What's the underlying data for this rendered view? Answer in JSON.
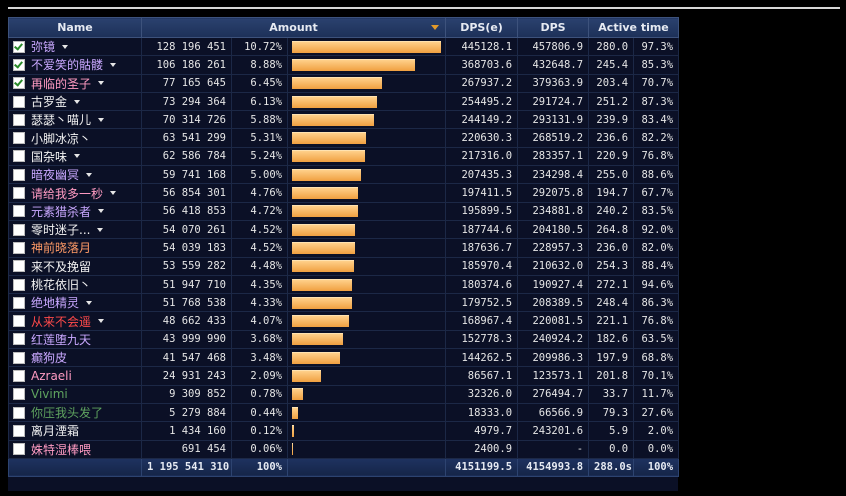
{
  "columns": {
    "name": "Name",
    "amount": "Amount",
    "dps_e": "DPS(e)",
    "dps": "DPS",
    "active": "Active time"
  },
  "rows": [
    {
      "checked": true,
      "name": "弥镜",
      "color": "#c9a8ff",
      "dropdown": true,
      "amount": "128 196 451",
      "pct": "10.72%",
      "frac": 1.0,
      "dpse": "445128.1",
      "dps": "457806.9",
      "time": "280.0",
      "tpct": "97.3%"
    },
    {
      "checked": true,
      "name": "不爱笑的骷髅",
      "color": "#c9a8ff",
      "dropdown": true,
      "amount": "106 186 261",
      "pct": "8.88%",
      "frac": 0.828,
      "dpse": "368703.6",
      "dps": "432648.7",
      "time": "245.4",
      "tpct": "85.3%"
    },
    {
      "checked": true,
      "name": "再临的圣子",
      "color": "#ff9bc2",
      "dropdown": true,
      "amount": "77 165 645",
      "pct": "6.45%",
      "frac": 0.602,
      "dpse": "267937.2",
      "dps": "379363.9",
      "time": "203.4",
      "tpct": "70.7%"
    },
    {
      "checked": false,
      "name": "古罗金",
      "color": "#f2f2f2",
      "dropdown": true,
      "amount": "73 294 364",
      "pct": "6.13%",
      "frac": 0.572,
      "dpse": "254495.2",
      "dps": "291724.7",
      "time": "251.2",
      "tpct": "87.3%"
    },
    {
      "checked": false,
      "name": "瑟瑟丶喵儿",
      "color": "#f2f2f2",
      "dropdown": true,
      "amount": "70 314 726",
      "pct": "5.88%",
      "frac": 0.548,
      "dpse": "244149.2",
      "dps": "293131.9",
      "time": "239.9",
      "tpct": "83.4%"
    },
    {
      "checked": false,
      "name": "小脚冰凉丶",
      "color": "#f2f2f2",
      "dropdown": false,
      "amount": "63 541 299",
      "pct": "5.31%",
      "frac": 0.496,
      "dpse": "220630.3",
      "dps": "268519.2",
      "time": "236.6",
      "tpct": "82.2%"
    },
    {
      "checked": false,
      "name": "国杂味",
      "color": "#f2f2f2",
      "dropdown": true,
      "amount": "62 586 784",
      "pct": "5.24%",
      "frac": 0.488,
      "dpse": "217316.0",
      "dps": "283357.1",
      "time": "220.9",
      "tpct": "76.8%"
    },
    {
      "checked": false,
      "name": "暗夜幽冥",
      "color": "#c9a8ff",
      "dropdown": true,
      "amount": "59 741 168",
      "pct": "5.00%",
      "frac": 0.466,
      "dpse": "207435.3",
      "dps": "234298.4",
      "time": "255.0",
      "tpct": "88.6%"
    },
    {
      "checked": false,
      "name": "请给我多一秒",
      "color": "#ff9bc2",
      "dropdown": true,
      "amount": "56 854 301",
      "pct": "4.76%",
      "frac": 0.443,
      "dpse": "197411.5",
      "dps": "292075.8",
      "time": "194.7",
      "tpct": "67.7%"
    },
    {
      "checked": false,
      "name": "元素猎杀者",
      "color": "#c9a8ff",
      "dropdown": true,
      "amount": "56 418 853",
      "pct": "4.72%",
      "frac": 0.44,
      "dpse": "195899.5",
      "dps": "234881.8",
      "time": "240.2",
      "tpct": "83.5%"
    },
    {
      "checked": false,
      "name": "零时迷子...",
      "color": "#f2f2f2",
      "dropdown": true,
      "amount": "54 070 261",
      "pct": "4.52%",
      "frac": 0.422,
      "dpse": "187744.6",
      "dps": "204180.5",
      "time": "264.8",
      "tpct": "92.0%"
    },
    {
      "checked": false,
      "name": "神前晓落月",
      "color": "#ff9a66",
      "dropdown": false,
      "amount": "54 039 183",
      "pct": "4.52%",
      "frac": 0.421,
      "dpse": "187636.7",
      "dps": "228957.3",
      "time": "236.0",
      "tpct": "82.0%"
    },
    {
      "checked": false,
      "name": "来不及挽留",
      "color": "#f2f2f2",
      "dropdown": false,
      "amount": "53 559 282",
      "pct": "4.48%",
      "frac": 0.418,
      "dpse": "185970.4",
      "dps": "210632.0",
      "time": "254.3",
      "tpct": "88.4%"
    },
    {
      "checked": false,
      "name": "桃花依旧丶",
      "color": "#f2f2f2",
      "dropdown": false,
      "amount": "51 947 710",
      "pct": "4.35%",
      "frac": 0.405,
      "dpse": "180374.6",
      "dps": "190927.4",
      "time": "272.1",
      "tpct": "94.6%"
    },
    {
      "checked": false,
      "name": "绝地精灵",
      "color": "#c9a8ff",
      "dropdown": true,
      "amount": "51 768 538",
      "pct": "4.33%",
      "frac": 0.404,
      "dpse": "179752.5",
      "dps": "208389.5",
      "time": "248.4",
      "tpct": "86.3%"
    },
    {
      "checked": false,
      "name": "从来不会遥",
      "color": "#ff4a4a",
      "dropdown": true,
      "amount": "48 662 433",
      "pct": "4.07%",
      "frac": 0.38,
      "dpse": "168967.4",
      "dps": "220081.5",
      "time": "221.1",
      "tpct": "76.8%"
    },
    {
      "checked": false,
      "name": "红莲堕九天",
      "color": "#c9a8ff",
      "dropdown": false,
      "amount": "43 999 990",
      "pct": "3.68%",
      "frac": 0.343,
      "dpse": "152778.3",
      "dps": "240924.2",
      "time": "182.6",
      "tpct": "63.5%"
    },
    {
      "checked": false,
      "name": "癫狗皮",
      "color": "#c9a8ff",
      "dropdown": false,
      "amount": "41 547 468",
      "pct": "3.48%",
      "frac": 0.324,
      "dpse": "144262.5",
      "dps": "209986.3",
      "time": "197.9",
      "tpct": "68.8%"
    },
    {
      "checked": false,
      "name": "Azraeli",
      "color": "#ff9bc2",
      "dropdown": false,
      "amount": "24 931 243",
      "pct": "2.09%",
      "frac": 0.194,
      "dpse": "86567.1",
      "dps": "123573.1",
      "time": "201.8",
      "tpct": "70.1%"
    },
    {
      "checked": false,
      "name": "Vivimi",
      "color": "#5fa35f",
      "dropdown": false,
      "amount": "9 309 852",
      "pct": "0.78%",
      "frac": 0.073,
      "dpse": "32326.0",
      "dps": "276494.7",
      "time": "33.7",
      "tpct": "11.7%"
    },
    {
      "checked": false,
      "name": "你压我头发了",
      "color": "#5fa35f",
      "dropdown": false,
      "amount": "5 279 884",
      "pct": "0.44%",
      "frac": 0.041,
      "dpse": "18333.0",
      "dps": "66566.9",
      "time": "79.3",
      "tpct": "27.6%"
    },
    {
      "checked": false,
      "name": "离月湮霜",
      "color": "#f2f2f2",
      "dropdown": false,
      "amount": "1 434 160",
      "pct": "0.12%",
      "frac": 0.011,
      "dpse": "4979.7",
      "dps": "243201.6",
      "time": "5.9",
      "tpct": "2.0%"
    },
    {
      "checked": false,
      "name": "姝特湿棒喂",
      "color": "#ff9bc2",
      "dropdown": false,
      "amount": "691 454",
      "pct": "0.06%",
      "frac": 0.005,
      "dpse": "2400.9",
      "dps": "-",
      "time": "0.0",
      "tpct": "0.0%"
    }
  ],
  "total": {
    "amount": "1 195 541 310",
    "pct": "100%",
    "dpse": "4151199.5",
    "dps": "4154993.8",
    "time": "288.0s",
    "tpct": "100%"
  }
}
